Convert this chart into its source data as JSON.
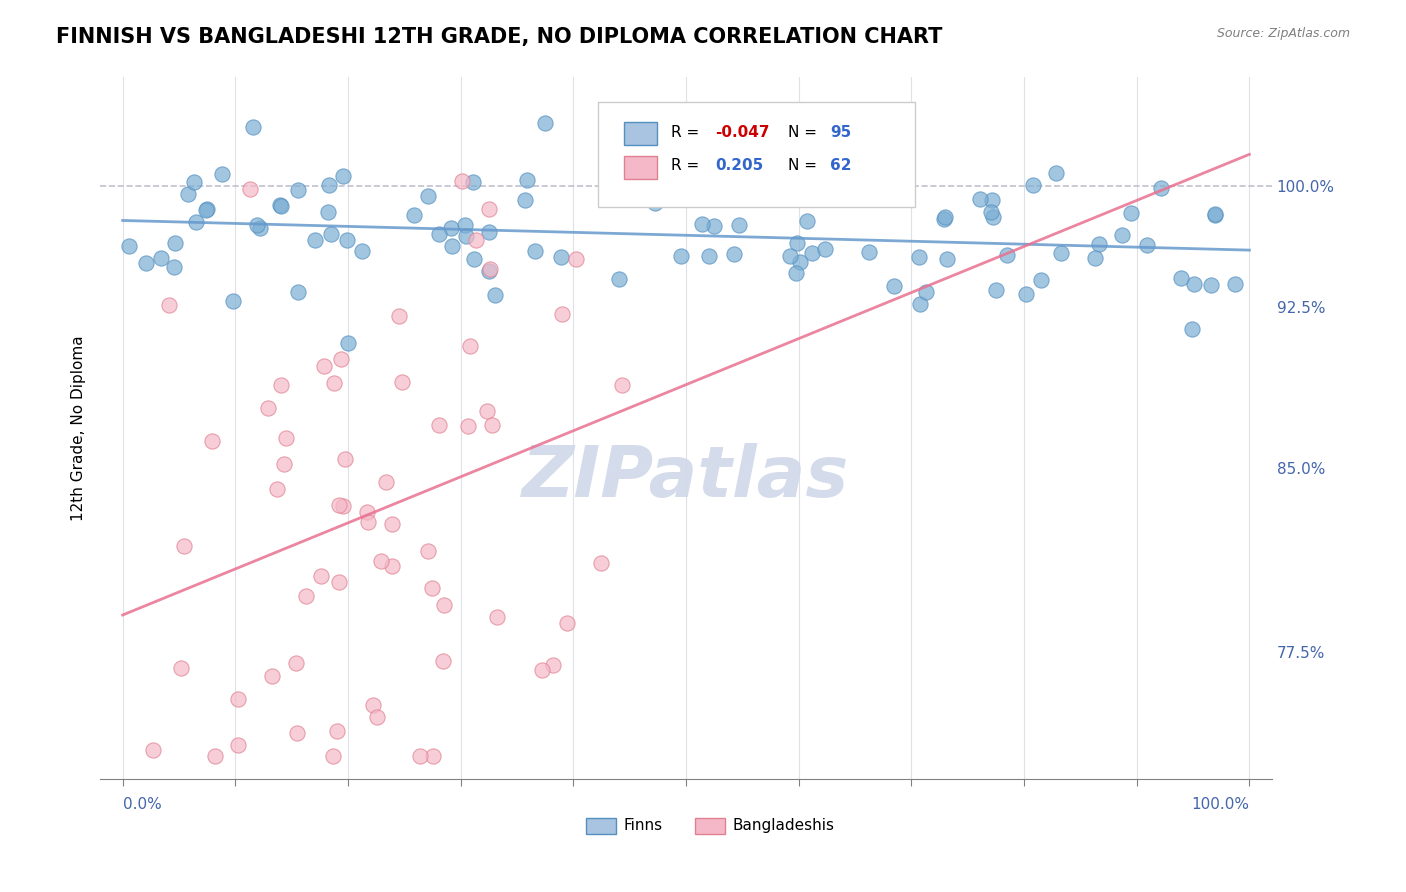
{
  "title": "FINNISH VS BANGLADESHI 12TH GRADE, NO DIPLOMA CORRELATION CHART",
  "source": "Source: ZipAtlas.com",
  "ylabel": "12th Grade, No Diploma",
  "finn_color": "#7bafd4",
  "finn_edge_color": "#5590c0",
  "bangla_color": "#f5b8c8",
  "bangla_edge_color": "#e08090",
  "trend_finn_color": "#6699cc",
  "trend_bangla_color": "#e87090",
  "dashed_line_color": "#bbbbcc",
  "watermark_color": "#d0d8e8",
  "ylim": [
    0.72,
    1.025
  ],
  "xlim": [
    -0.02,
    1.02
  ],
  "finn_scatter_seed": 42,
  "bangla_scatter_seed": 123,
  "background_color": "#ffffff",
  "grid_color": "#e0e0e8",
  "title_fontsize": 15,
  "axis_label_color": "#4466aa",
  "right_ytick_positions": [
    0.978,
    0.925,
    0.855,
    0.775
  ],
  "right_ytick_labels": [
    "100.0%",
    "92.5%",
    "85.0%",
    "77.5%"
  ]
}
